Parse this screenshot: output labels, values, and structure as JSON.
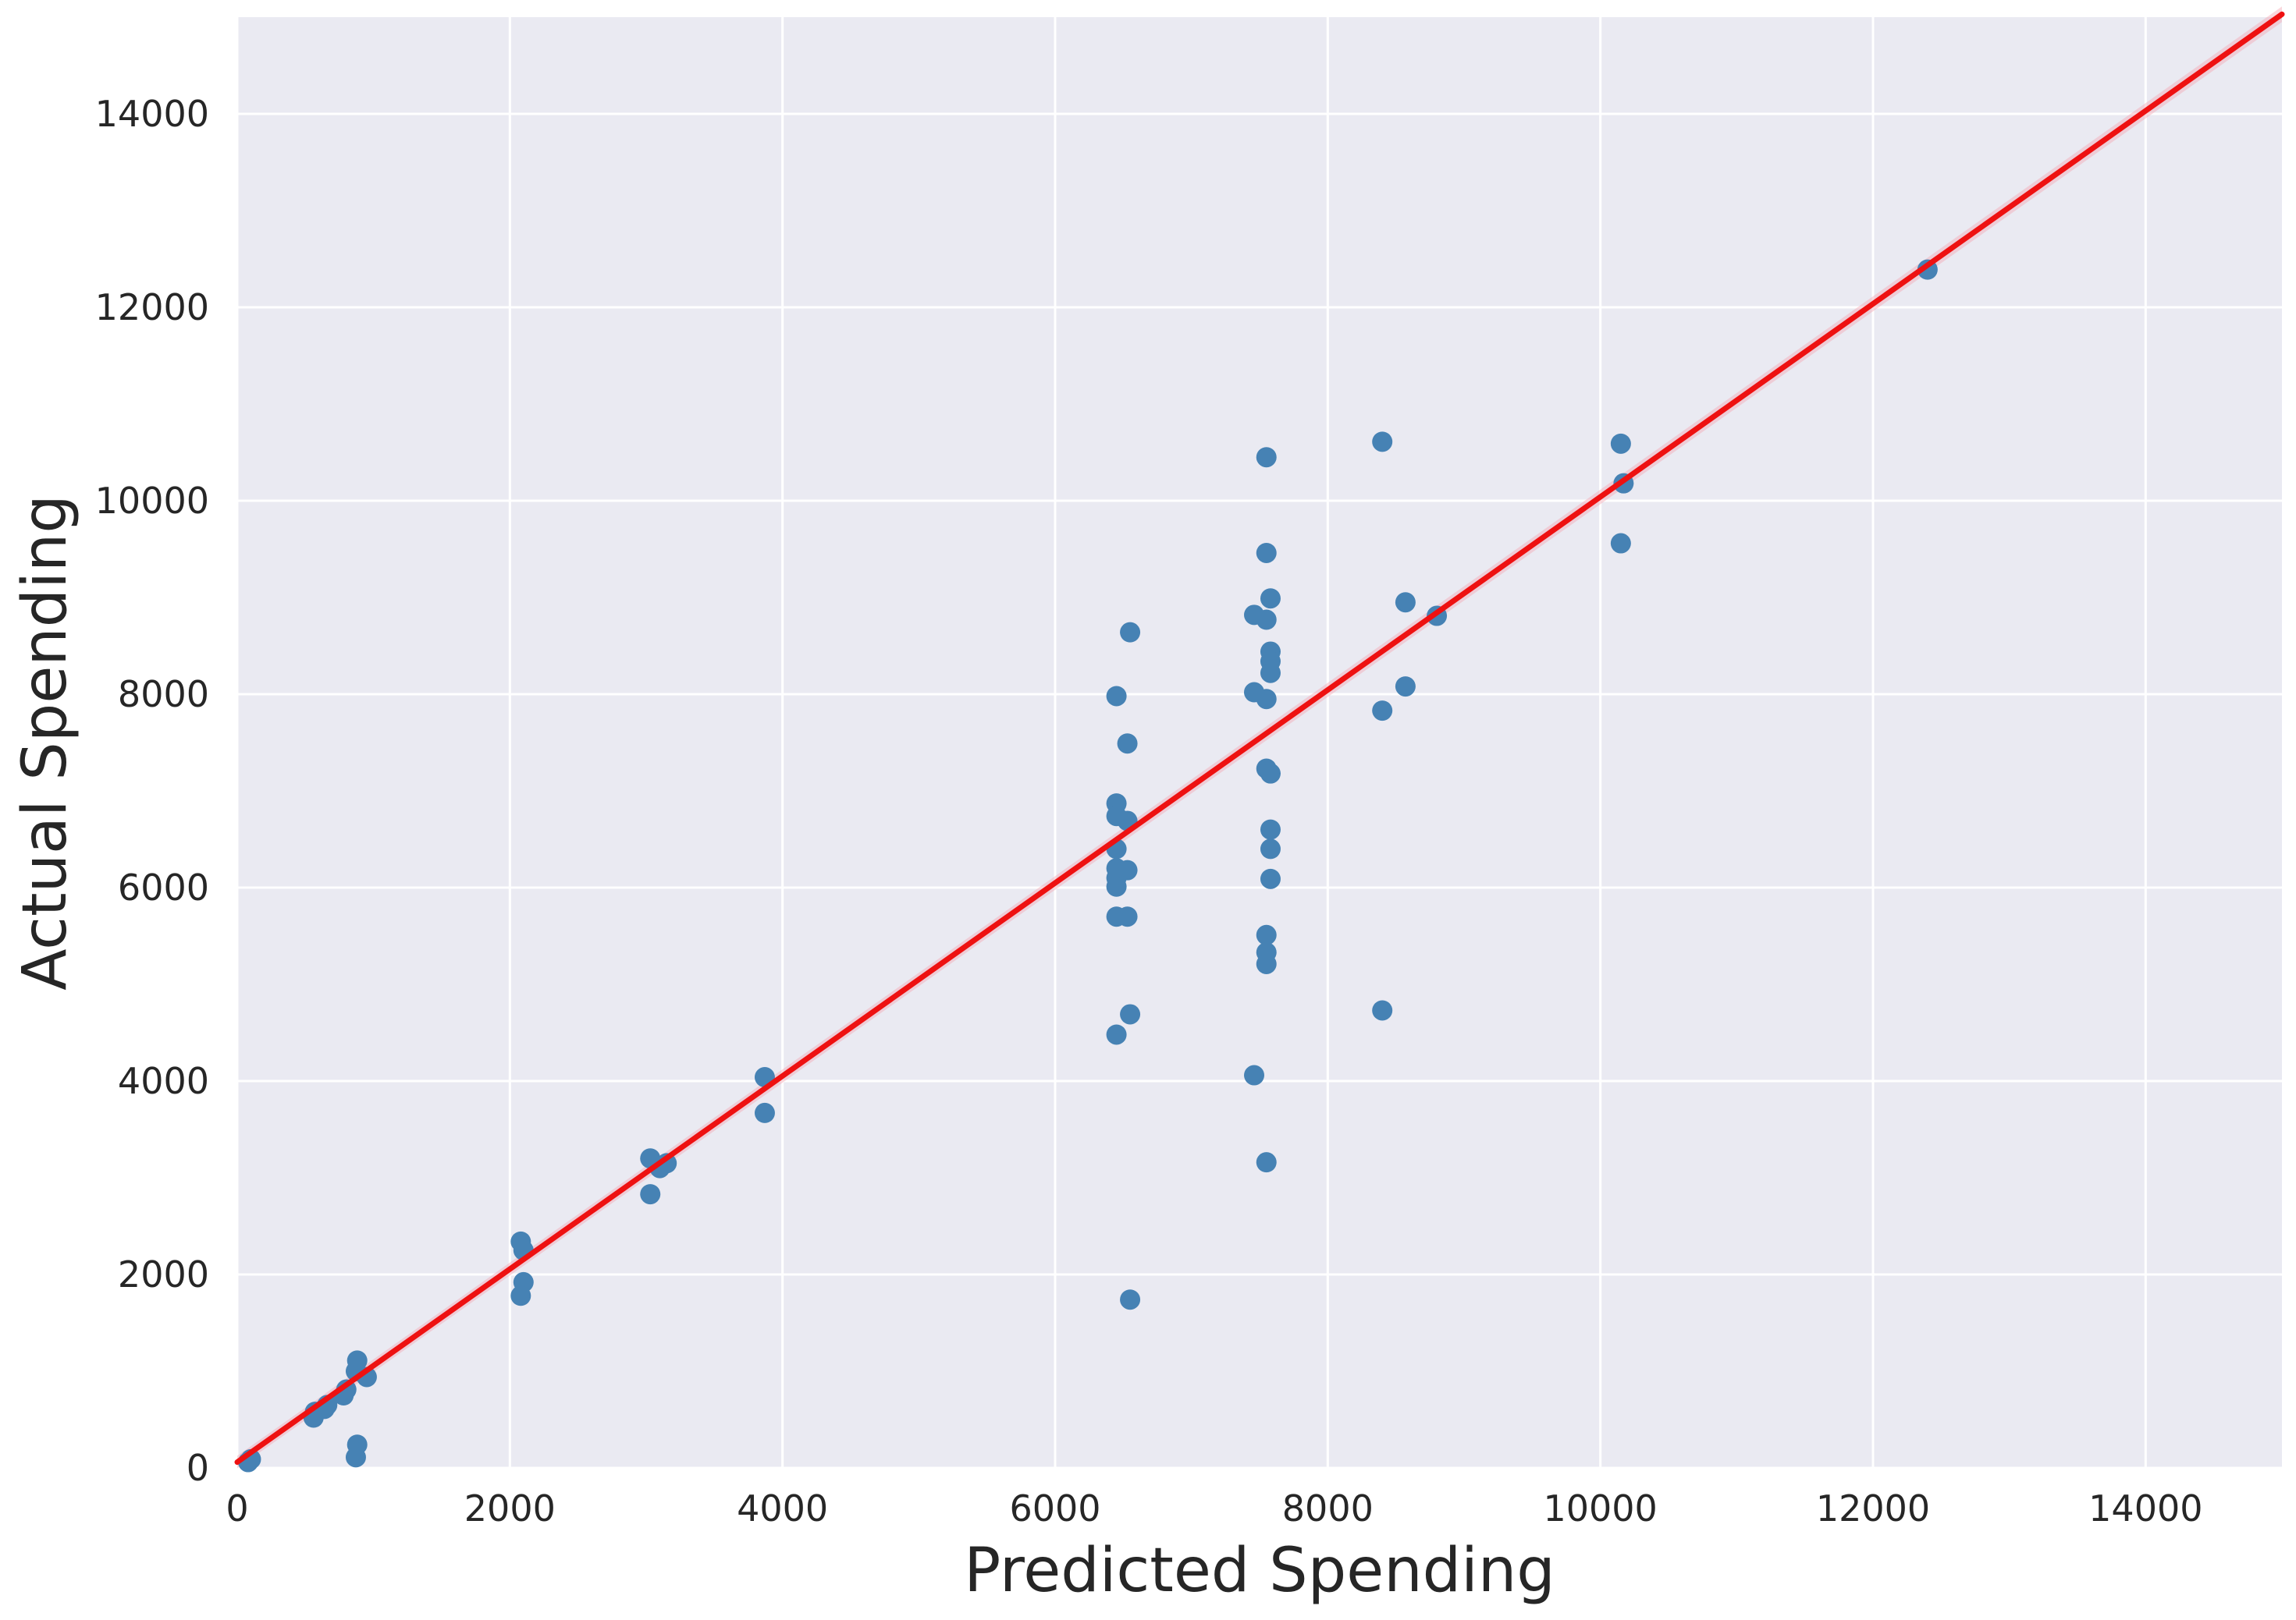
{
  "chart_data": {
    "type": "scatter",
    "title": "",
    "xlabel": "Predicted Spending",
    "ylabel": "Actual Spending",
    "xlim": [
      0,
      15000
    ],
    "ylim": [
      0,
      15000
    ],
    "grid": true,
    "legend": "none",
    "x_ticks": [
      0,
      2000,
      4000,
      6000,
      8000,
      10000,
      12000,
      14000
    ],
    "y_ticks": [
      0,
      2000,
      4000,
      6000,
      8000,
      10000,
      12000,
      14000
    ],
    "x_tick_labels": [
      "0",
      "2000",
      "4000",
      "6000",
      "8000",
      "10000",
      "12000",
      "14000"
    ],
    "y_tick_labels": [
      "0",
      "2000",
      "4000",
      "6000",
      "8000",
      "10000",
      "12000",
      "14000"
    ],
    "colors": {
      "background": "#eaeaf2",
      "grid": "#ffffff",
      "points": "#4682b4",
      "fit_line": "#ee1111",
      "confidence_band": "#f4a8b4"
    },
    "fit_line": {
      "x": [
        0,
        15000
      ],
      "y": [
        60,
        15030
      ]
    },
    "points": [
      {
        "x": 80,
        "y": 60
      },
      {
        "x": 100,
        "y": 90
      },
      {
        "x": 560,
        "y": 520
      },
      {
        "x": 570,
        "y": 580
      },
      {
        "x": 640,
        "y": 610
      },
      {
        "x": 660,
        "y": 650
      },
      {
        "x": 780,
        "y": 750
      },
      {
        "x": 800,
        "y": 810
      },
      {
        "x": 870,
        "y": 1000
      },
      {
        "x": 880,
        "y": 1110
      },
      {
        "x": 950,
        "y": 940
      },
      {
        "x": 870,
        "y": 110
      },
      {
        "x": 880,
        "y": 240
      },
      {
        "x": 2080,
        "y": 2340
      },
      {
        "x": 2100,
        "y": 2250
      },
      {
        "x": 2100,
        "y": 1920
      },
      {
        "x": 2080,
        "y": 1780
      },
      {
        "x": 3030,
        "y": 3200
      },
      {
        "x": 3030,
        "y": 2830
      },
      {
        "x": 3100,
        "y": 3100
      },
      {
        "x": 3150,
        "y": 3150
      },
      {
        "x": 3870,
        "y": 4040
      },
      {
        "x": 3870,
        "y": 3670
      },
      {
        "x": 6450,
        "y": 7980
      },
      {
        "x": 6450,
        "y": 6870
      },
      {
        "x": 6450,
        "y": 6740
      },
      {
        "x": 6450,
        "y": 6400
      },
      {
        "x": 6450,
        "y": 6200
      },
      {
        "x": 6450,
        "y": 6100
      },
      {
        "x": 6450,
        "y": 6010
      },
      {
        "x": 6450,
        "y": 5700
      },
      {
        "x": 6450,
        "y": 4480
      },
      {
        "x": 6530,
        "y": 7490
      },
      {
        "x": 6530,
        "y": 6690
      },
      {
        "x": 6530,
        "y": 6180
      },
      {
        "x": 6530,
        "y": 5700
      },
      {
        "x": 6550,
        "y": 8640
      },
      {
        "x": 6550,
        "y": 4690
      },
      {
        "x": 6550,
        "y": 1740
      },
      {
        "x": 7460,
        "y": 8820
      },
      {
        "x": 7460,
        "y": 8020
      },
      {
        "x": 7460,
        "y": 4060
      },
      {
        "x": 7550,
        "y": 10450
      },
      {
        "x": 7550,
        "y": 9460
      },
      {
        "x": 7550,
        "y": 8770
      },
      {
        "x": 7550,
        "y": 7950
      },
      {
        "x": 7550,
        "y": 7230
      },
      {
        "x": 7550,
        "y": 5510
      },
      {
        "x": 7550,
        "y": 5330
      },
      {
        "x": 7550,
        "y": 5210
      },
      {
        "x": 7550,
        "y": 3160
      },
      {
        "x": 7580,
        "y": 8990
      },
      {
        "x": 7580,
        "y": 8440
      },
      {
        "x": 7580,
        "y": 8340
      },
      {
        "x": 7580,
        "y": 8220
      },
      {
        "x": 7580,
        "y": 7180
      },
      {
        "x": 7580,
        "y": 6600
      },
      {
        "x": 7580,
        "y": 6400
      },
      {
        "x": 7580,
        "y": 6090
      },
      {
        "x": 8400,
        "y": 10610
      },
      {
        "x": 8400,
        "y": 7830
      },
      {
        "x": 8400,
        "y": 4730
      },
      {
        "x": 8570,
        "y": 8950
      },
      {
        "x": 8570,
        "y": 8080
      },
      {
        "x": 8800,
        "y": 8810
      },
      {
        "x": 10150,
        "y": 10590
      },
      {
        "x": 10170,
        "y": 10180
      },
      {
        "x": 10150,
        "y": 9560
      },
      {
        "x": 12400,
        "y": 12390
      }
    ]
  }
}
